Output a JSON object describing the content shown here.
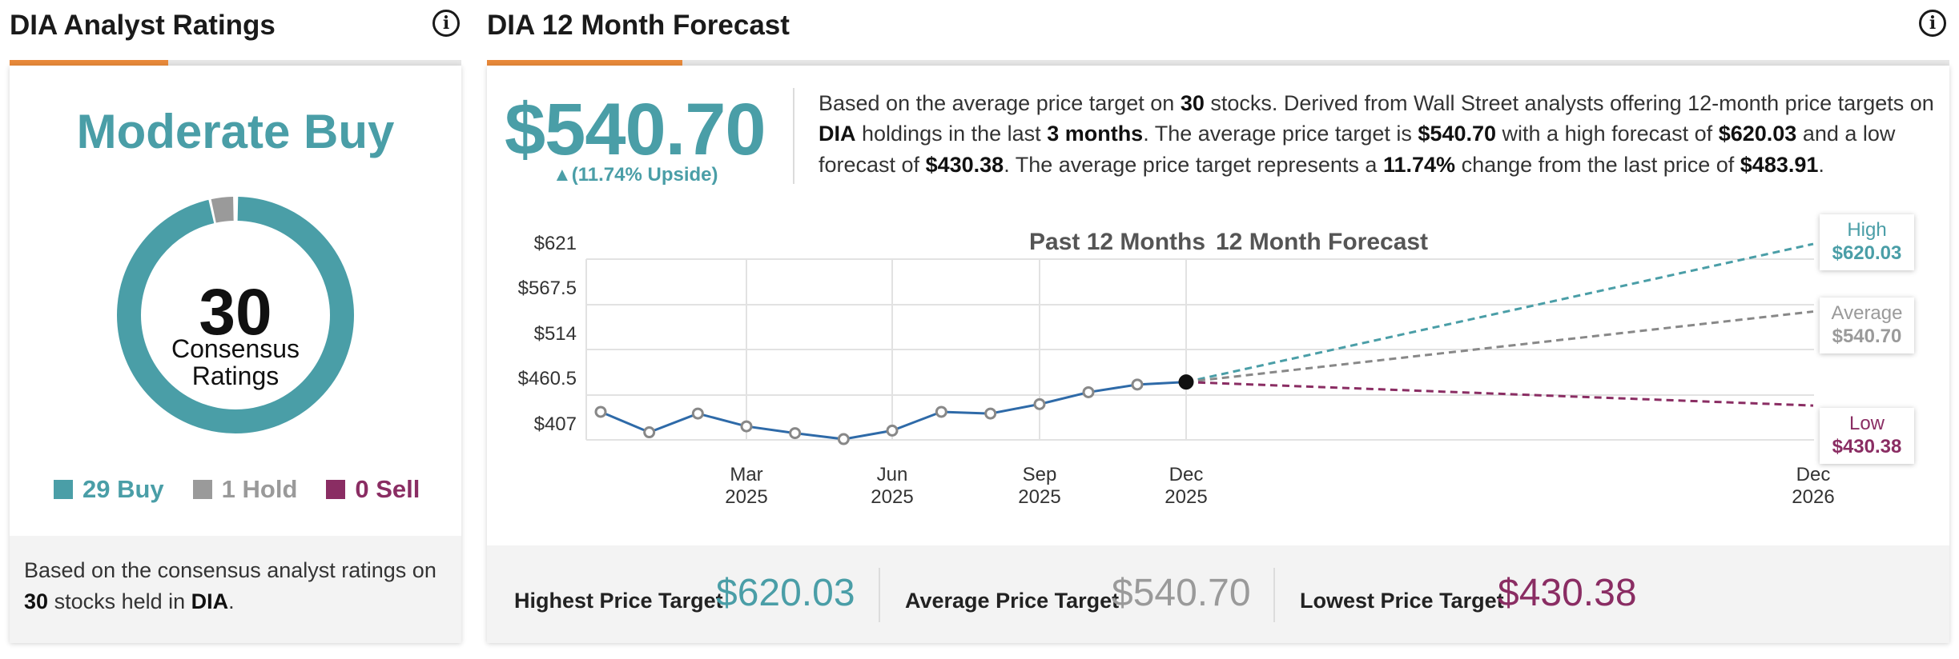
{
  "ratings": {
    "title": "DIA Analyst Ratings",
    "consensus_label": "Moderate Buy",
    "count": "30",
    "center_line1": "Consensus",
    "center_line2": "Ratings",
    "legend": [
      {
        "label": "29 Buy",
        "value": 29,
        "color": "#4a9ea7"
      },
      {
        "label": "1 Hold",
        "value": 1,
        "color": "#9a9a9a"
      },
      {
        "label": "0 Sell",
        "value": 0,
        "color": "#8a2d63"
      }
    ],
    "footer": {
      "part1": "Based on the consensus analyst ratings on",
      "count": "30",
      "part2": "stocks held in",
      "ticker": "DIA",
      "part3": "."
    }
  },
  "forecast": {
    "title": "DIA 12 Month Forecast",
    "price": "$540.70",
    "upside": "▲(11.74% Upside)",
    "desc": {
      "t1": "Based on the average price target on",
      "n_stocks": "30",
      "t2": "stocks. Derived from Wall Street analysts offering 12-month price targets on",
      "ticker": "DIA",
      "t3": "holdings in the last",
      "months": "3 months",
      "t4": ". The average price target is",
      "avg": "$540.70",
      "t5": "with a high forecast of",
      "high": "$620.03",
      "t6": "and a low forecast of",
      "low": "$430.38",
      "t7": ". The average price target represents a",
      "pct": "11.74%",
      "t8": "change from the last price of",
      "last": "$483.91",
      "t9": "."
    },
    "chart_header_past": "Past 12 Months",
    "chart_header_future": "12 Month Forecast",
    "callouts": {
      "high_label": "High",
      "high_value": "$620.03",
      "avg_label": "Average",
      "avg_value": "$540.70",
      "low_label": "Low",
      "low_value": "$430.38"
    },
    "targets": {
      "highest_label": "Highest Price Target",
      "highest_value": "$620.03",
      "average_label": "Average Price Target",
      "average_value": "$540.70",
      "lowest_label": "Lowest Price Target",
      "lowest_value": "$430.38"
    },
    "icon": "info-icon"
  },
  "colors": {
    "teal": "#4a9ea7",
    "grey": "#9a9a9a",
    "plum": "#8a2d63",
    "accent": "#e8893a",
    "line": "#2e6aa8"
  },
  "chart_data": {
    "type": "line",
    "yticks": [
      "$621",
      "$567.5",
      "$514",
      "$460.5",
      "$407"
    ],
    "ylim": [
      407,
      621
    ],
    "xticks": [
      {
        "month": "Mar",
        "year": "2025"
      },
      {
        "month": "Jun",
        "year": "2025"
      },
      {
        "month": "Sep",
        "year": "2025"
      },
      {
        "month": "Dec",
        "year": "2025"
      },
      {
        "month": "Dec",
        "year": "2026"
      }
    ],
    "history": [
      {
        "x": "2025-01",
        "y": 423
      },
      {
        "x": "2025-02",
        "y": 399
      },
      {
        "x": "2025-03",
        "y": 421
      },
      {
        "x": "2025-04",
        "y": 406
      },
      {
        "x": "2025-05",
        "y": 398
      },
      {
        "x": "2025-06",
        "y": 391
      },
      {
        "x": "2025-07",
        "y": 401
      },
      {
        "x": "2025-08",
        "y": 423
      },
      {
        "x": "2025-09",
        "y": 421
      },
      {
        "x": "2025-10",
        "y": 432
      },
      {
        "x": "2025-11",
        "y": 446
      },
      {
        "x": "2025-12",
        "y": 455
      },
      {
        "x": "2026-01",
        "y": 458
      }
    ],
    "forecast_series": [
      {
        "name": "High",
        "from": {
          "x": "2026-01",
          "y": 458
        },
        "to": {
          "x": "2027-01",
          "y": 620.03
        },
        "color": "#4a9ea7"
      },
      {
        "name": "Average",
        "from": {
          "x": "2026-01",
          "y": 458
        },
        "to": {
          "x": "2027-01",
          "y": 540.7
        },
        "color": "#888888"
      },
      {
        "name": "Low",
        "from": {
          "x": "2026-01",
          "y": 458
        },
        "to": {
          "x": "2027-01",
          "y": 430.38
        },
        "color": "#8a2d63"
      }
    ]
  }
}
